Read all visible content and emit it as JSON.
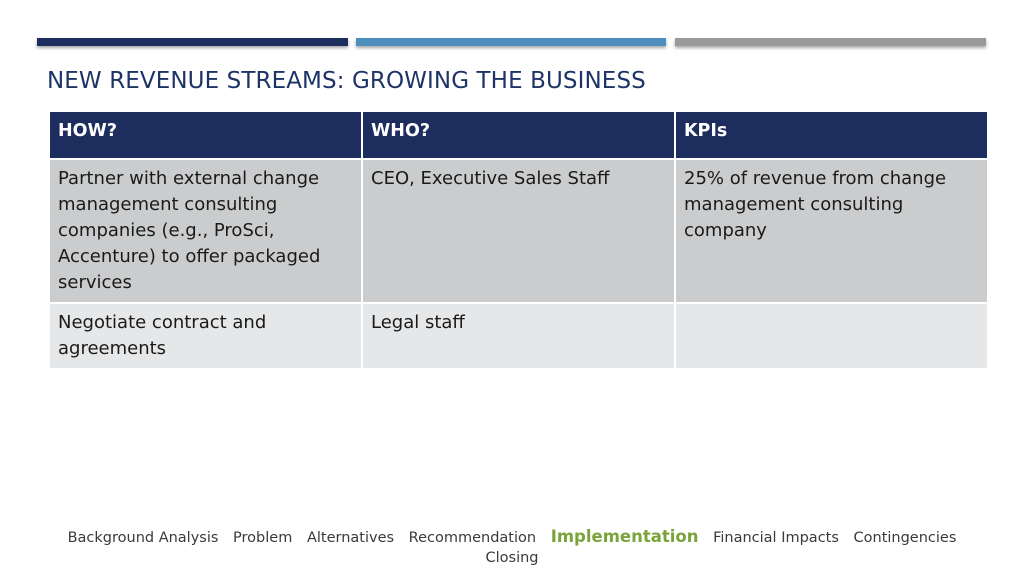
{
  "slide": {
    "title": "NEW REVENUE STREAMS: GROWING THE BUSINESS",
    "accent_colors": [
      "#1d2d5e",
      "#4f8fbf",
      "#9a9a9a"
    ]
  },
  "table": {
    "headers": [
      "HOW?",
      "WHO?",
      "KPIs"
    ],
    "rows": [
      [
        "Partner with external change management consulting companies (e.g., ProSci, Accenture) to offer packaged services",
        "CEO, Executive Sales Staff",
        "25% of revenue from change management consulting company"
      ],
      [
        "Negotiate contract and agreements",
        "Legal staff",
        ""
      ]
    ]
  },
  "nav": {
    "items": [
      "Background Analysis",
      "Problem",
      "Alternatives",
      "Recommendation",
      "Implementation",
      "Financial Impacts",
      "Contingencies"
    ],
    "second_line": "Closing",
    "active": "Implementation",
    "active_color": "#7aa33a"
  }
}
